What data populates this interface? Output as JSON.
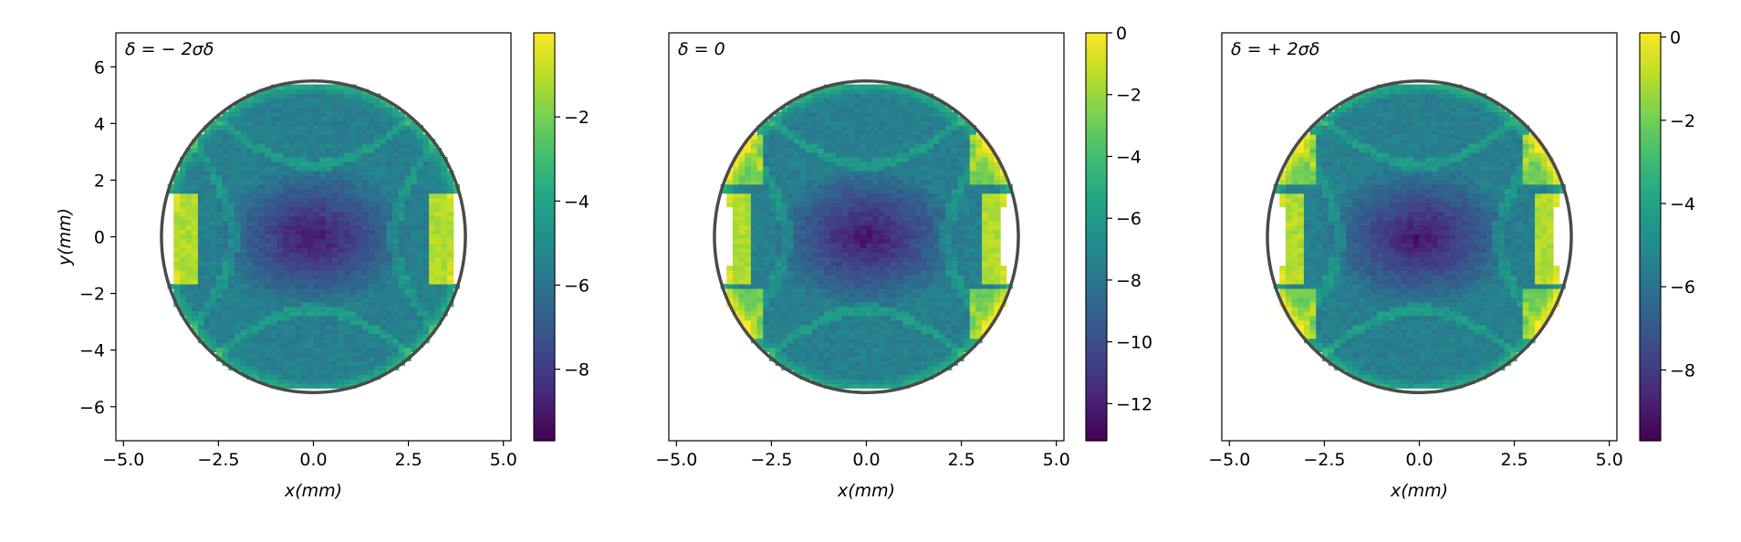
{
  "chart_data": [
    {
      "type": "heatmap",
      "title": "δ = − 2σδ",
      "xlabel": "x(mm)",
      "ylabel": "y(mm)",
      "xlim": [
        -5.2,
        5.2
      ],
      "ylim": [
        -7.2,
        7.2
      ],
      "xticks": [
        -5.0,
        -2.5,
        0.0,
        2.5,
        5.0
      ],
      "xtick_labels": [
        "−5.0",
        "−2.5",
        "0.0",
        "2.5",
        "5.0"
      ],
      "yticks": [
        6,
        4,
        2,
        0,
        -2,
        -4,
        -6
      ],
      "ytick_labels": [
        "6",
        "4",
        "2",
        "0",
        "−2",
        "−4",
        "−6"
      ],
      "colorbar": {
        "vmin": -9.7,
        "vmax": 0,
        "ticks": [
          -2,
          -4,
          -6,
          -8
        ],
        "tick_labels": [
          "−2",
          "−4",
          "−6",
          "−8"
        ],
        "colormap": "viridis"
      },
      "aperture_ellipse": {
        "cx": 0,
        "cy": 0,
        "rx": 4.0,
        "ry": 5.5,
        "color": "#4a4a4a"
      },
      "grid": false
    },
    {
      "type": "heatmap",
      "title": "δ = 0",
      "xlabel": "x(mm)",
      "ylabel": "",
      "xlim": [
        -5.2,
        5.2
      ],
      "ylim": [
        -7.2,
        7.2
      ],
      "xticks": [
        -5.0,
        -2.5,
        0.0,
        2.5,
        5.0
      ],
      "xtick_labels": [
        "−5.0",
        "−2.5",
        "0.0",
        "2.5",
        "5.0"
      ],
      "yticks": [],
      "ytick_labels": [],
      "colorbar": {
        "vmin": -13.2,
        "vmax": 0,
        "ticks": [
          0,
          -2,
          -4,
          -6,
          -8,
          -10,
          -12
        ],
        "tick_labels": [
          "0",
          "−2",
          "−4",
          "−6",
          "−8",
          "−10",
          "−12"
        ],
        "colormap": "viridis"
      },
      "aperture_ellipse": {
        "cx": 0,
        "cy": 0,
        "rx": 4.0,
        "ry": 5.5,
        "color": "#4a4a4a"
      },
      "grid": false
    },
    {
      "type": "heatmap",
      "title": "δ = + 2σδ",
      "xlabel": "x(mm)",
      "ylabel": "",
      "xlim": [
        -5.2,
        5.2
      ],
      "ylim": [
        -7.2,
        7.2
      ],
      "xticks": [
        -5.0,
        -2.5,
        0.0,
        2.5,
        5.0
      ],
      "xtick_labels": [
        "−5.0",
        "−2.5",
        "0.0",
        "2.5",
        "5.0"
      ],
      "yticks": [],
      "ytick_labels": [],
      "colorbar": {
        "vmin": -9.7,
        "vmax": 0.1,
        "ticks": [
          0,
          -2,
          -4,
          -6,
          -8
        ],
        "tick_labels": [
          "0",
          "−2",
          "−4",
          "−6",
          "−8"
        ],
        "colormap": "viridis"
      },
      "aperture_ellipse": {
        "cx": 0,
        "cy": 0,
        "rx": 4.0,
        "ry": 5.5,
        "color": "#4a4a4a"
      },
      "grid": false
    }
  ]
}
